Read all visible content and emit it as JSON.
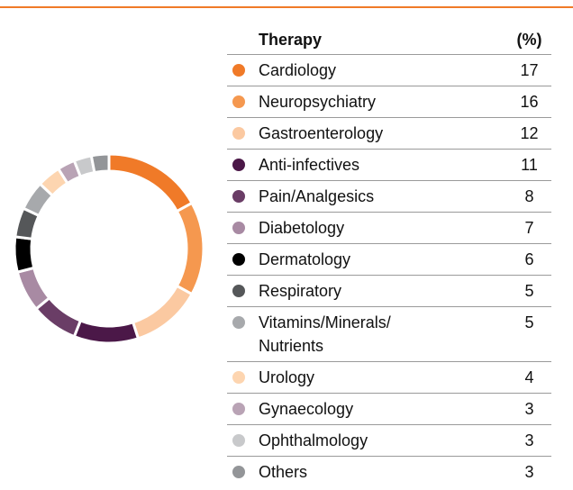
{
  "chart_data": {
    "type": "pie",
    "donut": true,
    "columns": [
      "Therapy",
      "(%)"
    ],
    "categories": [
      "Cardiology",
      "Neuropsychiatry",
      "Gastroenterology",
      "Anti-infectives",
      "Pain/Analgesics",
      "Diabetology",
      "Dermatology",
      "Respiratory",
      "Vitamins/Minerals/ Nutrients",
      "Urology",
      "Gynaecology",
      "Ophthalmology",
      "Others"
    ],
    "values": [
      17,
      16,
      12,
      11,
      8,
      7,
      6,
      5,
      5,
      4,
      3,
      3,
      3
    ],
    "colors": [
      "#f07a28",
      "#f5984f",
      "#fbc9a1",
      "#4b1848",
      "#6a3d66",
      "#a88aa3",
      "#000000",
      "#555759",
      "#a7a9ac",
      "#fdd5b0",
      "#b9a3b5",
      "#c8c9cb",
      "#939598"
    ]
  }
}
